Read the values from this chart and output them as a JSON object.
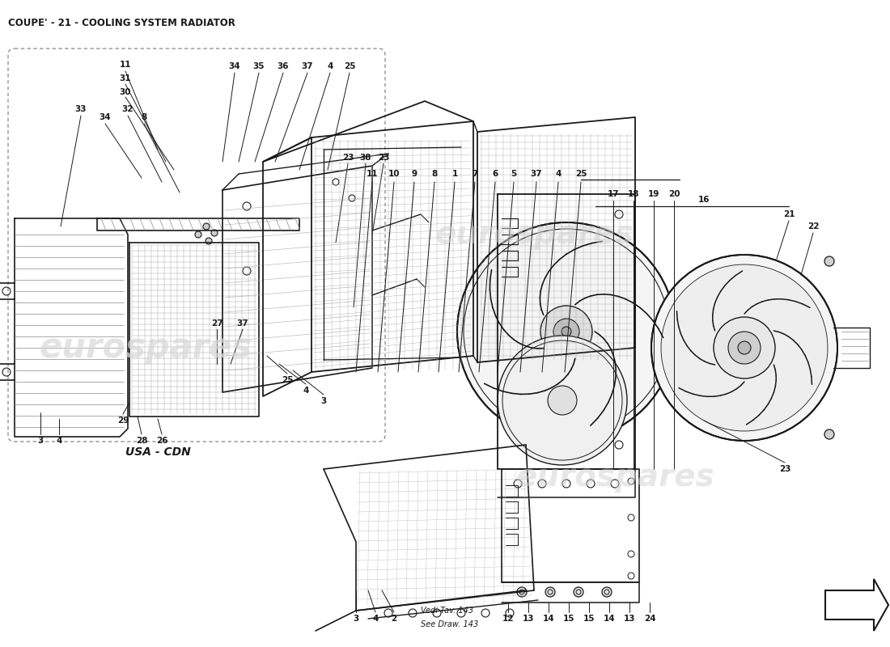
{
  "title": "COUPE' - 21 - COOLING SYSTEM RADIATOR",
  "title_fontsize": 8,
  "title_fontweight": "bold",
  "background_color": "#ffffff",
  "line_color": "#1a1a1a",
  "watermark_color_left": "#d8d8d8",
  "watermark_color_right": "#d0d0d0",
  "watermark_text": "eurospares",
  "usa_cdn_label": "USA - CDN",
  "vedi_tav": "Vedi Tav. 143",
  "see_draw": "See Draw. 143",
  "label_fontsize": 7.5
}
